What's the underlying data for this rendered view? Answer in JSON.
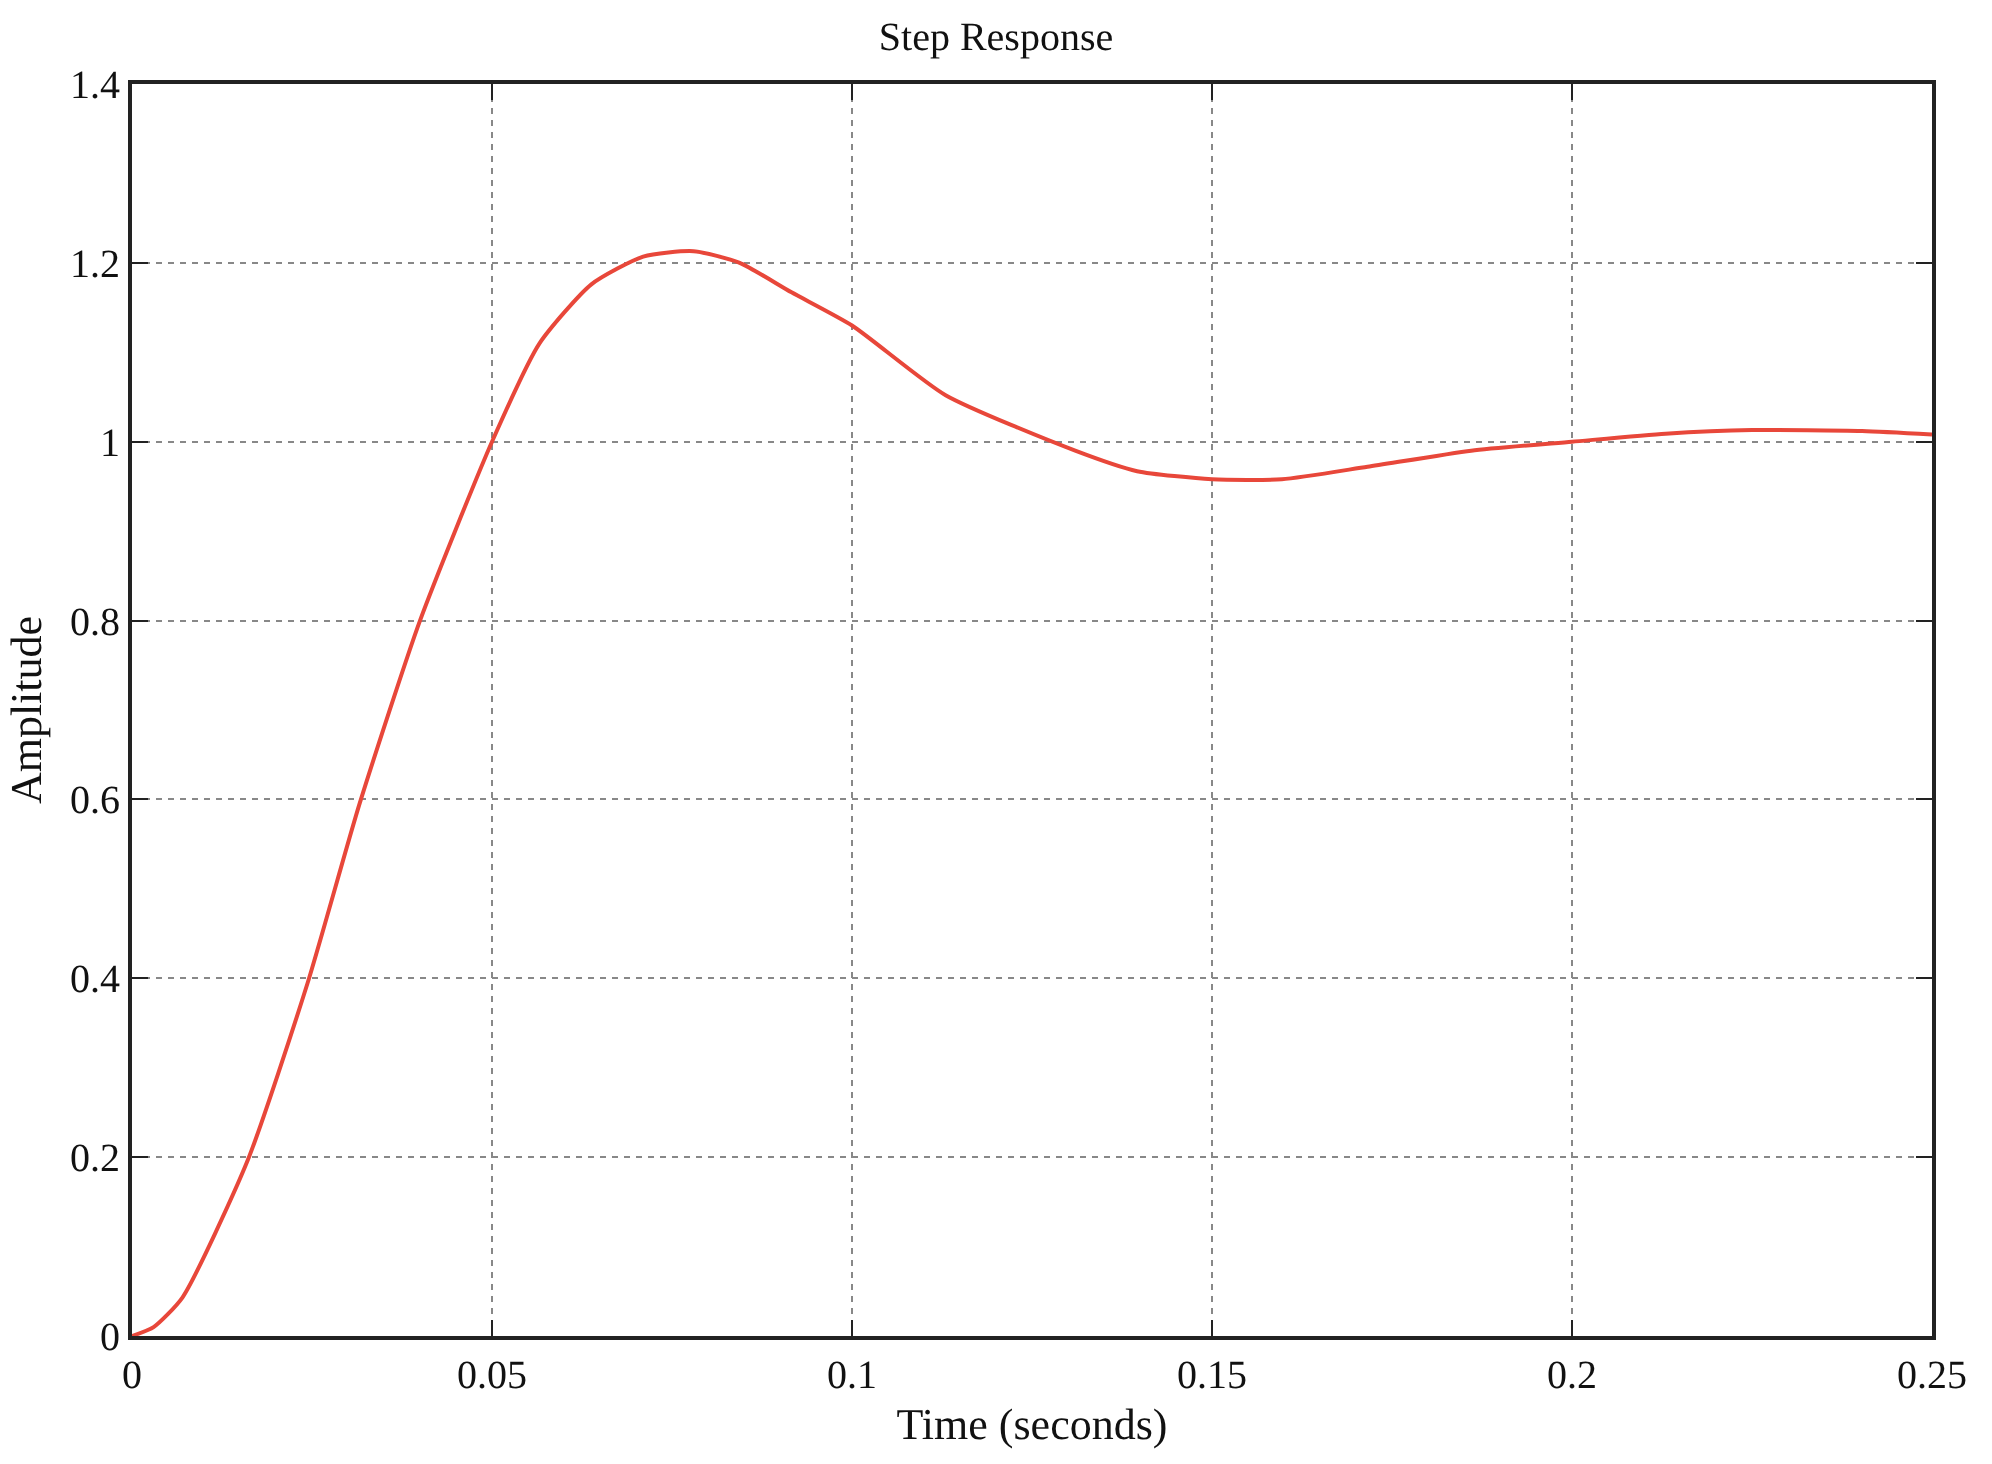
{
  "chart_data": {
    "type": "line",
    "title": "Step Response",
    "xlabel": "Time (seconds)",
    "ylabel": "Amplitude",
    "x": [
      0,
      0.003,
      0.007,
      0.016,
      0.0244,
      0.0316,
      0.04,
      0.05,
      0.0566,
      0.0638,
      0.071,
      0.078,
      0.0844,
      0.0916,
      0.1,
      0.113,
      0.131,
      0.1396,
      0.15,
      0.1597,
      0.1716,
      0.186,
      0.2,
      0.213,
      0.225,
      0.2403,
      0.25
    ],
    "series": [
      {
        "color": "#e8473a",
        "values": [
          0,
          0.01,
          0.043,
          0.195,
          0.395,
          0.595,
          0.8,
          1.0,
          1.11,
          1.176,
          1.207,
          1.213,
          1.2,
          1.167,
          1.13,
          1.052,
          0.99,
          0.967,
          0.958,
          0.958,
          0.972,
          0.99,
          1.0,
          1.009,
          1.013,
          1.012,
          1.008
        ]
      }
    ],
    "xlim": [
      0,
      0.25
    ],
    "xticks": [
      0,
      0.05,
      0.1,
      0.15,
      0.2,
      0.25
    ],
    "ylim": [
      0,
      1.4
    ],
    "yticks": [
      0,
      0.2,
      0.4,
      0.6,
      0.8,
      1,
      1.2,
      1.4
    ],
    "grid": true,
    "marker": "none",
    "line_style": "solid"
  }
}
